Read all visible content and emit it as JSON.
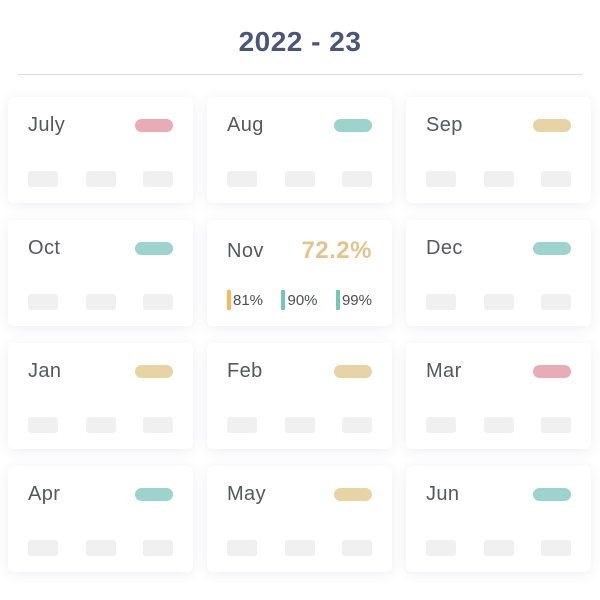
{
  "header": {
    "title": "2022 - 23"
  },
  "colors": {
    "pink": "#e9abb5",
    "teal": "#9cd3cd",
    "tan": "#e7d3a4",
    "highlight_value": "#e2c48c",
    "bar_orange": "#f8b858",
    "bar_teal": "#74c6b9",
    "title_text": "#4a5578",
    "month_text": "#57585c",
    "placeholder_bg": "#f0f0f1"
  },
  "months": [
    {
      "label": "July",
      "pill_color": "pink"
    },
    {
      "label": "Aug",
      "pill_color": "teal"
    },
    {
      "label": "Sep",
      "pill_color": "tan"
    },
    {
      "label": "Oct",
      "pill_color": "teal"
    },
    {
      "label": "Nov",
      "type": "detailed",
      "value": "72.2%",
      "stats": [
        {
          "value": "81%",
          "bar_color": "orange"
        },
        {
          "value": "90%",
          "bar_color": "teal"
        },
        {
          "value": "99%",
          "bar_color": "teal"
        }
      ]
    },
    {
      "label": "Dec",
      "pill_color": "teal"
    },
    {
      "label": "Jan",
      "pill_color": "tan"
    },
    {
      "label": "Feb",
      "pill_color": "tan"
    },
    {
      "label": "Mar",
      "pill_color": "pink"
    },
    {
      "label": "Apr",
      "pill_color": "teal"
    },
    {
      "label": "May",
      "pill_color": "tan"
    },
    {
      "label": "Jun",
      "pill_color": "teal"
    }
  ]
}
